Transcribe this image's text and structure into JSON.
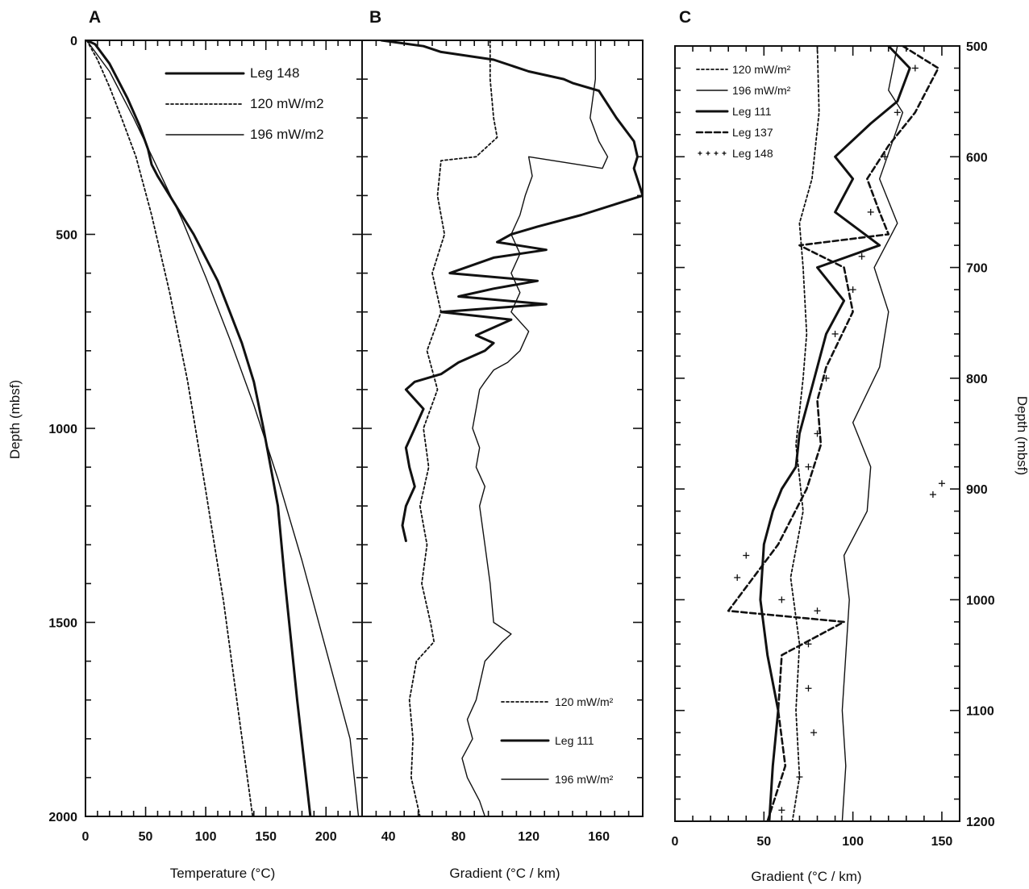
{
  "chart_data": [
    {
      "type": "line",
      "panel": "A",
      "xlabel": "Temperature (°C)",
      "ylabel": "Depth (mbsf)",
      "xlim": [
        0,
        230
      ],
      "ylim": [
        2000,
        0
      ],
      "xticks": [
        "0",
        "50",
        "100",
        "150",
        "200"
      ],
      "yticks": [
        "0",
        "500",
        "1000",
        "1500",
        "2000"
      ],
      "legend_position": "top-right",
      "series": [
        {
          "name": "Leg 148",
          "style": "thick",
          "points": [
            [
              1,
              0
            ],
            [
              8,
              10
            ],
            [
              20,
              60
            ],
            [
              35,
              150
            ],
            [
              45,
              220
            ],
            [
              52,
              280
            ],
            [
              55,
              320
            ],
            [
              60,
              350
            ],
            [
              70,
              400
            ],
            [
              80,
              450
            ],
            [
              90,
              500
            ],
            [
              100,
              560
            ],
            [
              110,
              620
            ],
            [
              120,
              700
            ],
            [
              130,
              780
            ],
            [
              140,
              880
            ],
            [
              148,
              1000
            ],
            [
              154,
              1100
            ],
            [
              160,
              1200
            ],
            [
              166,
              1400
            ],
            [
              176,
              1700
            ],
            [
              187,
              2000
            ]
          ]
        },
        {
          "name": "120 mW/m2",
          "style": "dotted",
          "points": [
            [
              1,
              0
            ],
            [
              10,
              50
            ],
            [
              20,
              120
            ],
            [
              30,
              200
            ],
            [
              42,
              300
            ],
            [
              55,
              450
            ],
            [
              70,
              650
            ],
            [
              85,
              880
            ],
            [
              100,
              1160
            ],
            [
              115,
              1450
            ],
            [
              128,
              1750
            ],
            [
              139,
              2000
            ]
          ]
        },
        {
          "name": "196 mW/m2",
          "style": "thin",
          "points": [
            [
              1,
              0
            ],
            [
              20,
              80
            ],
            [
              40,
              200
            ],
            [
              60,
              330
            ],
            [
              80,
              460
            ],
            [
              100,
              610
            ],
            [
              120,
              770
            ],
            [
              140,
              940
            ],
            [
              160,
              1130
            ],
            [
              180,
              1340
            ],
            [
              200,
              1570
            ],
            [
              220,
              1800
            ],
            [
              227,
              2000
            ]
          ]
        }
      ]
    },
    {
      "type": "line",
      "panel": "B",
      "xlabel": "Gradient (°C / km)",
      "ylabel": "",
      "xlim": [
        25,
        185
      ],
      "ylim": [
        2000,
        0
      ],
      "xticks": [
        "40",
        "80",
        "120",
        "160"
      ],
      "legend_position": "bottom-right",
      "series": [
        {
          "name": "120 mW/m²",
          "style": "dotted",
          "points": [
            [
              98,
              0
            ],
            [
              98,
              100
            ],
            [
              100,
              200
            ],
            [
              102,
              250
            ],
            [
              90,
              300
            ],
            [
              70,
              310
            ],
            [
              68,
              400
            ],
            [
              72,
              500
            ],
            [
              65,
              600
            ],
            [
              70,
              700
            ],
            [
              62,
              800
            ],
            [
              68,
              900
            ],
            [
              60,
              1000
            ],
            [
              63,
              1100
            ],
            [
              58,
              1200
            ],
            [
              62,
              1300
            ],
            [
              59,
              1400
            ],
            [
              64,
              1500
            ],
            [
              66,
              1550
            ],
            [
              56,
              1600
            ],
            [
              52,
              1700
            ],
            [
              54,
              1800
            ],
            [
              53,
              1900
            ],
            [
              58,
              2000
            ]
          ]
        },
        {
          "name": "Leg 111",
          "style": "thick",
          "points": [
            [
              36,
              0
            ],
            [
              60,
              15
            ],
            [
              70,
              30
            ],
            [
              100,
              50
            ],
            [
              120,
              80
            ],
            [
              140,
              100
            ],
            [
              145,
              110
            ],
            [
              160,
              130
            ],
            [
              170,
              200
            ],
            [
              180,
              260
            ],
            [
              182,
              300
            ],
            [
              180,
              330
            ],
            [
              185,
              400
            ],
            [
              150,
              450
            ],
            [
              125,
              480
            ],
            [
              110,
              500
            ],
            [
              102,
              520
            ],
            [
              130,
              540
            ],
            [
              100,
              560
            ],
            [
              75,
              600
            ],
            [
              125,
              620
            ],
            [
              100,
              640
            ],
            [
              80,
              660
            ],
            [
              130,
              680
            ],
            [
              70,
              700
            ],
            [
              110,
              720
            ],
            [
              90,
              760
            ],
            [
              100,
              780
            ],
            [
              95,
              800
            ],
            [
              80,
              830
            ],
            [
              70,
              860
            ],
            [
              55,
              880
            ],
            [
              50,
              900
            ],
            [
              60,
              950
            ],
            [
              55,
              1000
            ],
            [
              50,
              1050
            ],
            [
              52,
              1100
            ],
            [
              55,
              1150
            ],
            [
              50,
              1200
            ],
            [
              48,
              1250
            ],
            [
              50,
              1290
            ]
          ]
        },
        {
          "name": "196 mW/m²",
          "style": "thin",
          "points": [
            [
              158,
              0
            ],
            [
              158,
              100
            ],
            [
              155,
              200
            ],
            [
              160,
              260
            ],
            [
              165,
              300
            ],
            [
              162,
              330
            ],
            [
              120,
              300
            ],
            [
              122,
              350
            ],
            [
              118,
              400
            ],
            [
              115,
              450
            ],
            [
              110,
              500
            ],
            [
              115,
              550
            ],
            [
              110,
              600
            ],
            [
              115,
              650
            ],
            [
              110,
              700
            ],
            [
              120,
              750
            ],
            [
              115,
              800
            ],
            [
              108,
              830
            ],
            [
              100,
              850
            ],
            [
              95,
              880
            ],
            [
              92,
              900
            ],
            [
              90,
              950
            ],
            [
              88,
              1000
            ],
            [
              92,
              1050
            ],
            [
              90,
              1100
            ],
            [
              95,
              1150
            ],
            [
              92,
              1200
            ],
            [
              95,
              1300
            ],
            [
              98,
              1400
            ],
            [
              100,
              1500
            ],
            [
              110,
              1530
            ],
            [
              105,
              1550
            ],
            [
              95,
              1600
            ],
            [
              90,
              1700
            ],
            [
              85,
              1750
            ],
            [
              88,
              1800
            ],
            [
              82,
              1850
            ],
            [
              85,
              1900
            ],
            [
              92,
              1960
            ],
            [
              95,
              2000
            ]
          ]
        }
      ]
    },
    {
      "type": "line",
      "panel": "C",
      "xlabel": "Gradient (°C / km)",
      "ylabel": "Depth (mbsf)",
      "xlim": [
        0,
        160
      ],
      "ylim": [
        1200,
        500
      ],
      "xticks": [
        "0",
        "50",
        "100",
        "150"
      ],
      "yticks": [
        "500",
        "600",
        "700",
        "800",
        "900",
        "1000",
        "1100",
        "1200"
      ],
      "legend_position": "top-left",
      "series": [
        {
          "name": "120 mW/m²",
          "style": "dotted",
          "points": [
            [
              80,
              500
            ],
            [
              81,
              560
            ],
            [
              77,
              620
            ],
            [
              70,
              660
            ],
            [
              72,
              700
            ],
            [
              74,
              760
            ],
            [
              72,
              800
            ],
            [
              68,
              860
            ],
            [
              72,
              920
            ],
            [
              65,
              980
            ],
            [
              70,
              1040
            ],
            [
              68,
              1100
            ],
            [
              70,
              1160
            ],
            [
              66,
              1200
            ]
          ]
        },
        {
          "name": "196 mW/m²",
          "style": "thin",
          "points": [
            [
              125,
              500
            ],
            [
              120,
              540
            ],
            [
              128,
              560
            ],
            [
              115,
              620
            ],
            [
              125,
              660
            ],
            [
              112,
              700
            ],
            [
              120,
              740
            ],
            [
              115,
              790
            ],
            [
              100,
              840
            ],
            [
              110,
              880
            ],
            [
              108,
              920
            ],
            [
              95,
              960
            ],
            [
              98,
              1000
            ],
            [
              96,
              1050
            ],
            [
              94,
              1100
            ],
            [
              96,
              1150
            ],
            [
              94,
              1200
            ]
          ]
        },
        {
          "name": "Leg 111",
          "style": "thick",
          "points": [
            [
              120,
              500
            ],
            [
              132,
              520
            ],
            [
              125,
              550
            ],
            [
              110,
              570
            ],
            [
              90,
              600
            ],
            [
              100,
              620
            ],
            [
              90,
              650
            ],
            [
              115,
              680
            ],
            [
              80,
              700
            ],
            [
              95,
              730
            ],
            [
              85,
              760
            ],
            [
              80,
              790
            ],
            [
              75,
              820
            ],
            [
              70,
              850
            ],
            [
              68,
              880
            ],
            [
              60,
              900
            ],
            [
              55,
              920
            ],
            [
              50,
              950
            ],
            [
              48,
              1000
            ],
            [
              52,
              1050
            ],
            [
              58,
              1100
            ],
            [
              55,
              1150
            ],
            [
              53,
              1200
            ]
          ]
        },
        {
          "name": "Leg 137",
          "style": "dashed",
          "points": [
            [
              128,
              500
            ],
            [
              148,
              520
            ],
            [
              135,
              560
            ],
            [
              120,
              590
            ],
            [
              108,
              620
            ],
            [
              115,
              650
            ],
            [
              120,
              670
            ],
            [
              70,
              680
            ],
            [
              95,
              700
            ],
            [
              100,
              740
            ],
            [
              85,
              790
            ],
            [
              80,
              820
            ],
            [
              82,
              860
            ],
            [
              74,
              900
            ],
            [
              58,
              950
            ],
            [
              30,
              1010
            ],
            [
              95,
              1020
            ],
            [
              60,
              1050
            ],
            [
              58,
              1100
            ],
            [
              62,
              1150
            ],
            [
              52,
              1200
            ]
          ]
        },
        {
          "name": "Leg 148",
          "style": "plus",
          "points": [
            [
              135,
              520
            ],
            [
              125,
              560
            ],
            [
              118,
              600
            ],
            [
              110,
              650
            ],
            [
              105,
              690
            ],
            [
              100,
              720
            ],
            [
              90,
              760
            ],
            [
              85,
              800
            ],
            [
              80,
              850
            ],
            [
              75,
              880
            ],
            [
              150,
              895
            ],
            [
              145,
              905
            ],
            [
              40,
              960
            ],
            [
              35,
              980
            ],
            [
              60,
              1000
            ],
            [
              80,
              1010
            ],
            [
              75,
              1040
            ],
            [
              75,
              1080
            ],
            [
              78,
              1120
            ],
            [
              70,
              1160
            ],
            [
              60,
              1190
            ]
          ]
        }
      ]
    }
  ]
}
